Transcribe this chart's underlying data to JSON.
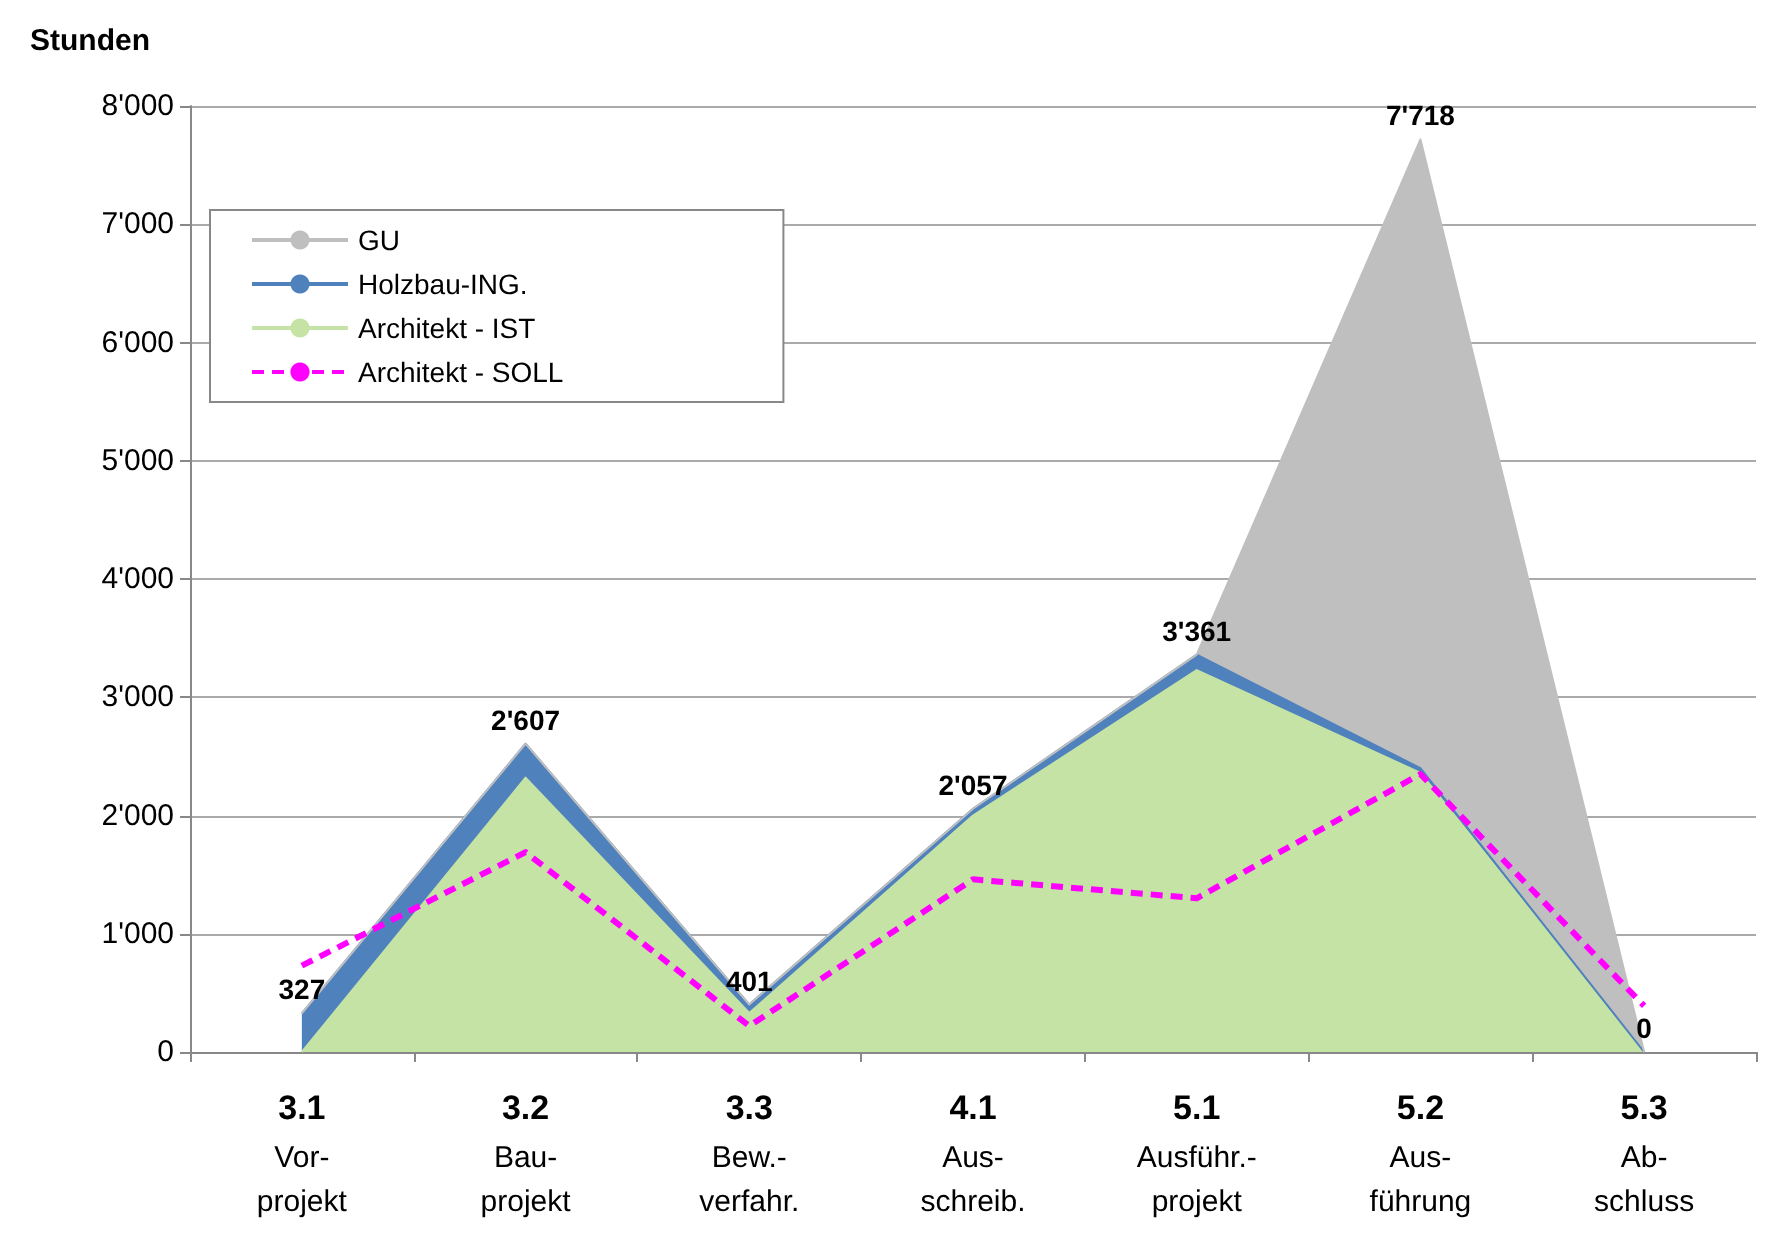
{
  "chart_data": {
    "type": "area",
    "stacked": true,
    "ylabel": "Stunden",
    "categories": [
      "3.1\nVor-\nprojekt",
      "3.2\nBau-\nprojekt",
      "3.3\nBew.-\nverfahr.",
      "4.1\nAus-\nschreib.",
      "5.1\nAusführ.-\nprojekt",
      "5.2\nAus-\nführung",
      "5.3\nAb-\nschluss"
    ],
    "series": [
      {
        "name": "Architekt - IST",
        "color": "#c5e3a5",
        "values": [
          0,
          2320,
          330,
          2000,
          3230,
          2360,
          0
        ]
      },
      {
        "name": "Holzbau-ING.",
        "color": "#4f81bd",
        "values": [
          327,
          287,
          71,
          57,
          131,
          40,
          0
        ]
      },
      {
        "name": "GU",
        "color": "#bfbfbf",
        "values": [
          0,
          0,
          0,
          0,
          0,
          5318,
          0
        ]
      },
      {
        "name": "Architekt - SOLL",
        "type": "line",
        "line_style": "dashed",
        "color": "#ff00ff",
        "values": [
          730,
          1690,
          220,
          1460,
          1300,
          2350,
          390
        ]
      }
    ],
    "totals": [
      "327",
      "2'607",
      "401",
      "2'057",
      "3'361",
      "7'718",
      "0"
    ],
    "ylim": [
      0,
      8000
    ],
    "yticks": [
      {
        "value": 0,
        "label": "0"
      },
      {
        "value": 1000,
        "label": "1'000"
      },
      {
        "value": 2000,
        "label": "2'000"
      },
      {
        "value": 3000,
        "label": "3'000"
      },
      {
        "value": 4000,
        "label": "4'000"
      },
      {
        "value": 5000,
        "label": "5'000"
      },
      {
        "value": 6000,
        "label": "6'000"
      },
      {
        "value": 7000,
        "label": "7'000"
      },
      {
        "value": 8000,
        "label": "8'000"
      }
    ],
    "grid": "y",
    "legend": "top left"
  }
}
